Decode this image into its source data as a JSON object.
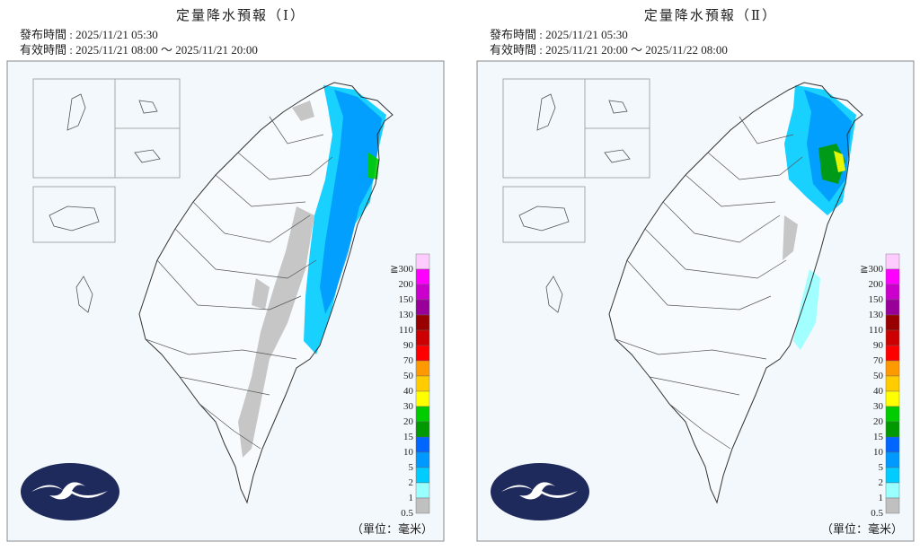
{
  "panels": [
    {
      "title": "定量降水預報（Ⅰ）",
      "issued": "發布時間 : 2025/11/21 05:30",
      "valid": "有效時間 : 2025/11/21 08:00 ～ 2025/11/21 20:00",
      "unit": "（單位：毫米）"
    },
    {
      "title": "定量降水預報（Ⅱ）",
      "issued": "發布時間 : 2025/11/21 05:30",
      "valid": "有效時間 : 2025/11/21 20:00 ～ 2025/11/22 08:00",
      "unit": "（單位：毫米）"
    }
  ],
  "legend": {
    "labels": [
      "≧300",
      "200",
      "150",
      "130",
      "110",
      "90",
      "70",
      "50",
      "40",
      "30",
      "20",
      "15",
      "10",
      "5",
      "2",
      "1",
      "0.5"
    ],
    "colors": [
      "#ffccff",
      "#ff00ff",
      "#cc00cc",
      "#990099",
      "#990000",
      "#cc0000",
      "#ff0000",
      "#ff9900",
      "#ffcc00",
      "#ffff00",
      "#00cc00",
      "#009900",
      "#0066ff",
      "#0099ff",
      "#00ccff",
      "#99ffff",
      "#c0c0c0"
    ]
  }
}
